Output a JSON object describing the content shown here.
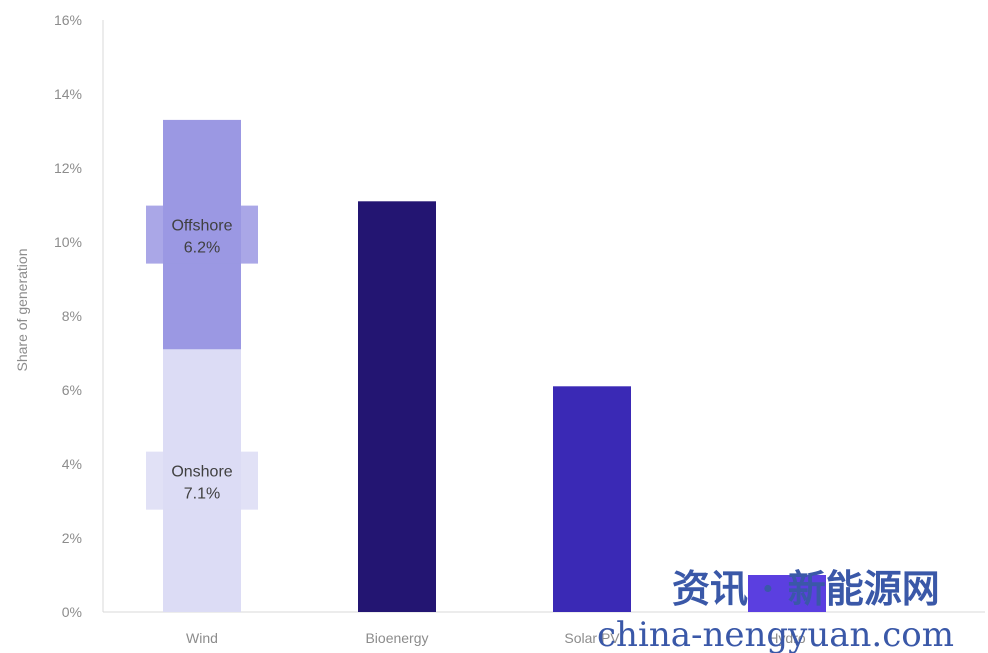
{
  "chart_data": {
    "type": "bar",
    "stacked": true,
    "categories": [
      "Wind",
      "Bioenergy",
      "Solar PV",
      "Hydro"
    ],
    "series": [
      {
        "name": "Onshore",
        "values": [
          7.1,
          null,
          null,
          null
        ],
        "color": "#dcdcf5",
        "label": "Onshore\n7.1%"
      },
      {
        "name": "Offshore",
        "values": [
          6.2,
          null,
          null,
          null
        ],
        "color": "#9b98e3",
        "label": "Offshore\n6.2%"
      },
      {
        "name": "",
        "values": [
          null,
          11.1,
          null,
          null
        ],
        "color": "#231572"
      },
      {
        "name": "",
        "values": [
          null,
          null,
          6.1,
          null
        ],
        "color": "#3a29b5"
      },
      {
        "name": "",
        "values": [
          null,
          null,
          null,
          1.0
        ],
        "color": "#5b3fe0"
      }
    ],
    "ylabel": "Share of generation",
    "xlabel": "",
    "ylim": [
      0,
      16
    ],
    "yticks": [
      "0%",
      "2%",
      "4%",
      "6%",
      "8%",
      "10%",
      "12%",
      "14%",
      "16%"
    ],
    "grid": false
  },
  "watermark": {
    "chinese": "资讯 · 新能源网",
    "url": "china-nengyuan.com"
  }
}
